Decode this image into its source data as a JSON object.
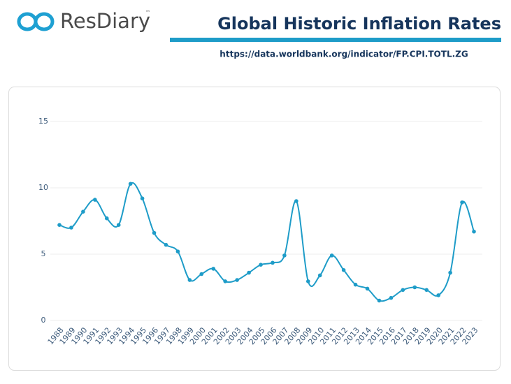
{
  "header": {
    "logo": "ResDiary",
    "trademark": "™"
  },
  "chart_data": {
    "type": "line",
    "title": "Global Historic Inflation Rates",
    "subtitle": "https://data.worldbank.org/indicator/FP.CPI.TOTL.ZG",
    "categories": [
      "1988",
      "1989",
      "1990",
      "1991",
      "1992",
      "1993",
      "1994",
      "1995",
      "1996",
      "1997",
      "1998",
      "1999",
      "2000",
      "2001",
      "2002",
      "2003",
      "2004",
      "2005",
      "2006",
      "2007",
      "2008",
      "2009",
      "2010",
      "2011",
      "2012",
      "2013",
      "2014",
      "2015",
      "2016",
      "2017",
      "2018",
      "2019",
      "2020",
      "2021",
      "2022",
      "2023"
    ],
    "values": [
      7.2,
      7.0,
      8.2,
      9.1,
      7.7,
      7.2,
      10.3,
      9.2,
      6.6,
      5.7,
      5.2,
      3.05,
      3.5,
      3.9,
      2.95,
      3.05,
      3.6,
      4.2,
      4.35,
      4.9,
      9.0,
      2.95,
      3.4,
      4.9,
      3.8,
      2.7,
      2.4,
      1.5,
      1.7,
      2.3,
      2.5,
      2.3,
      1.9,
      3.6,
      8.9,
      6.7
    ],
    "color": "#1e9cc8",
    "ylim": [
      0,
      15
    ],
    "yticks": [
      0,
      5,
      10,
      15
    ],
    "grid": true
  }
}
